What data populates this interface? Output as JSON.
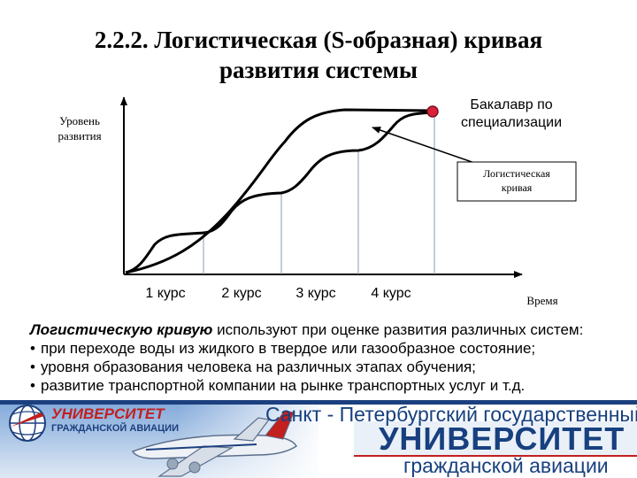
{
  "title": {
    "line1": "2.2.2. Логистическая (S-образная) кривая",
    "line2": "развития системы"
  },
  "diagram": {
    "y_axis_label": [
      "Уровень",
      "развития"
    ],
    "x_axis_label": "Время",
    "x_ticks": [
      "1 курс",
      "2 курс",
      "3 курс",
      "4 курс"
    ],
    "endpoint_label": [
      "Бакалавр по",
      "специализации"
    ],
    "callout_label": [
      "Логистическая",
      "кривая"
    ],
    "colors": {
      "curve": "#000000",
      "endpoint": "#d9223a",
      "gridline": "#8a9bb0"
    }
  },
  "body": {
    "lead": "Логистическую кривую",
    "lead_rest": " используют при оценке развития различных систем:",
    "bullet_char": "•",
    "bullets": [
      "при переходе воды из жидкого в твердое или газообразное состояние;",
      "уровня образования человека на различных этапах обучения;",
      "развитие транспортной компании на рынке транспортных услуг и т.д."
    ]
  },
  "banner": {
    "line1": "Санкт - Петербургский государственный",
    "line2": "УНИВЕРСИТЕТ",
    "line3": "гражданской авиации",
    "logo_line1": "УНИВЕРСИТЕТ",
    "logo_line2": "ГРАЖДАНСКОЙ АВИАЦИИ",
    "colors": {
      "primary": "#17407f",
      "accent": "#c21f1f"
    },
    "icons": [
      "globe-logo-icon",
      "airplane-icon"
    ]
  }
}
